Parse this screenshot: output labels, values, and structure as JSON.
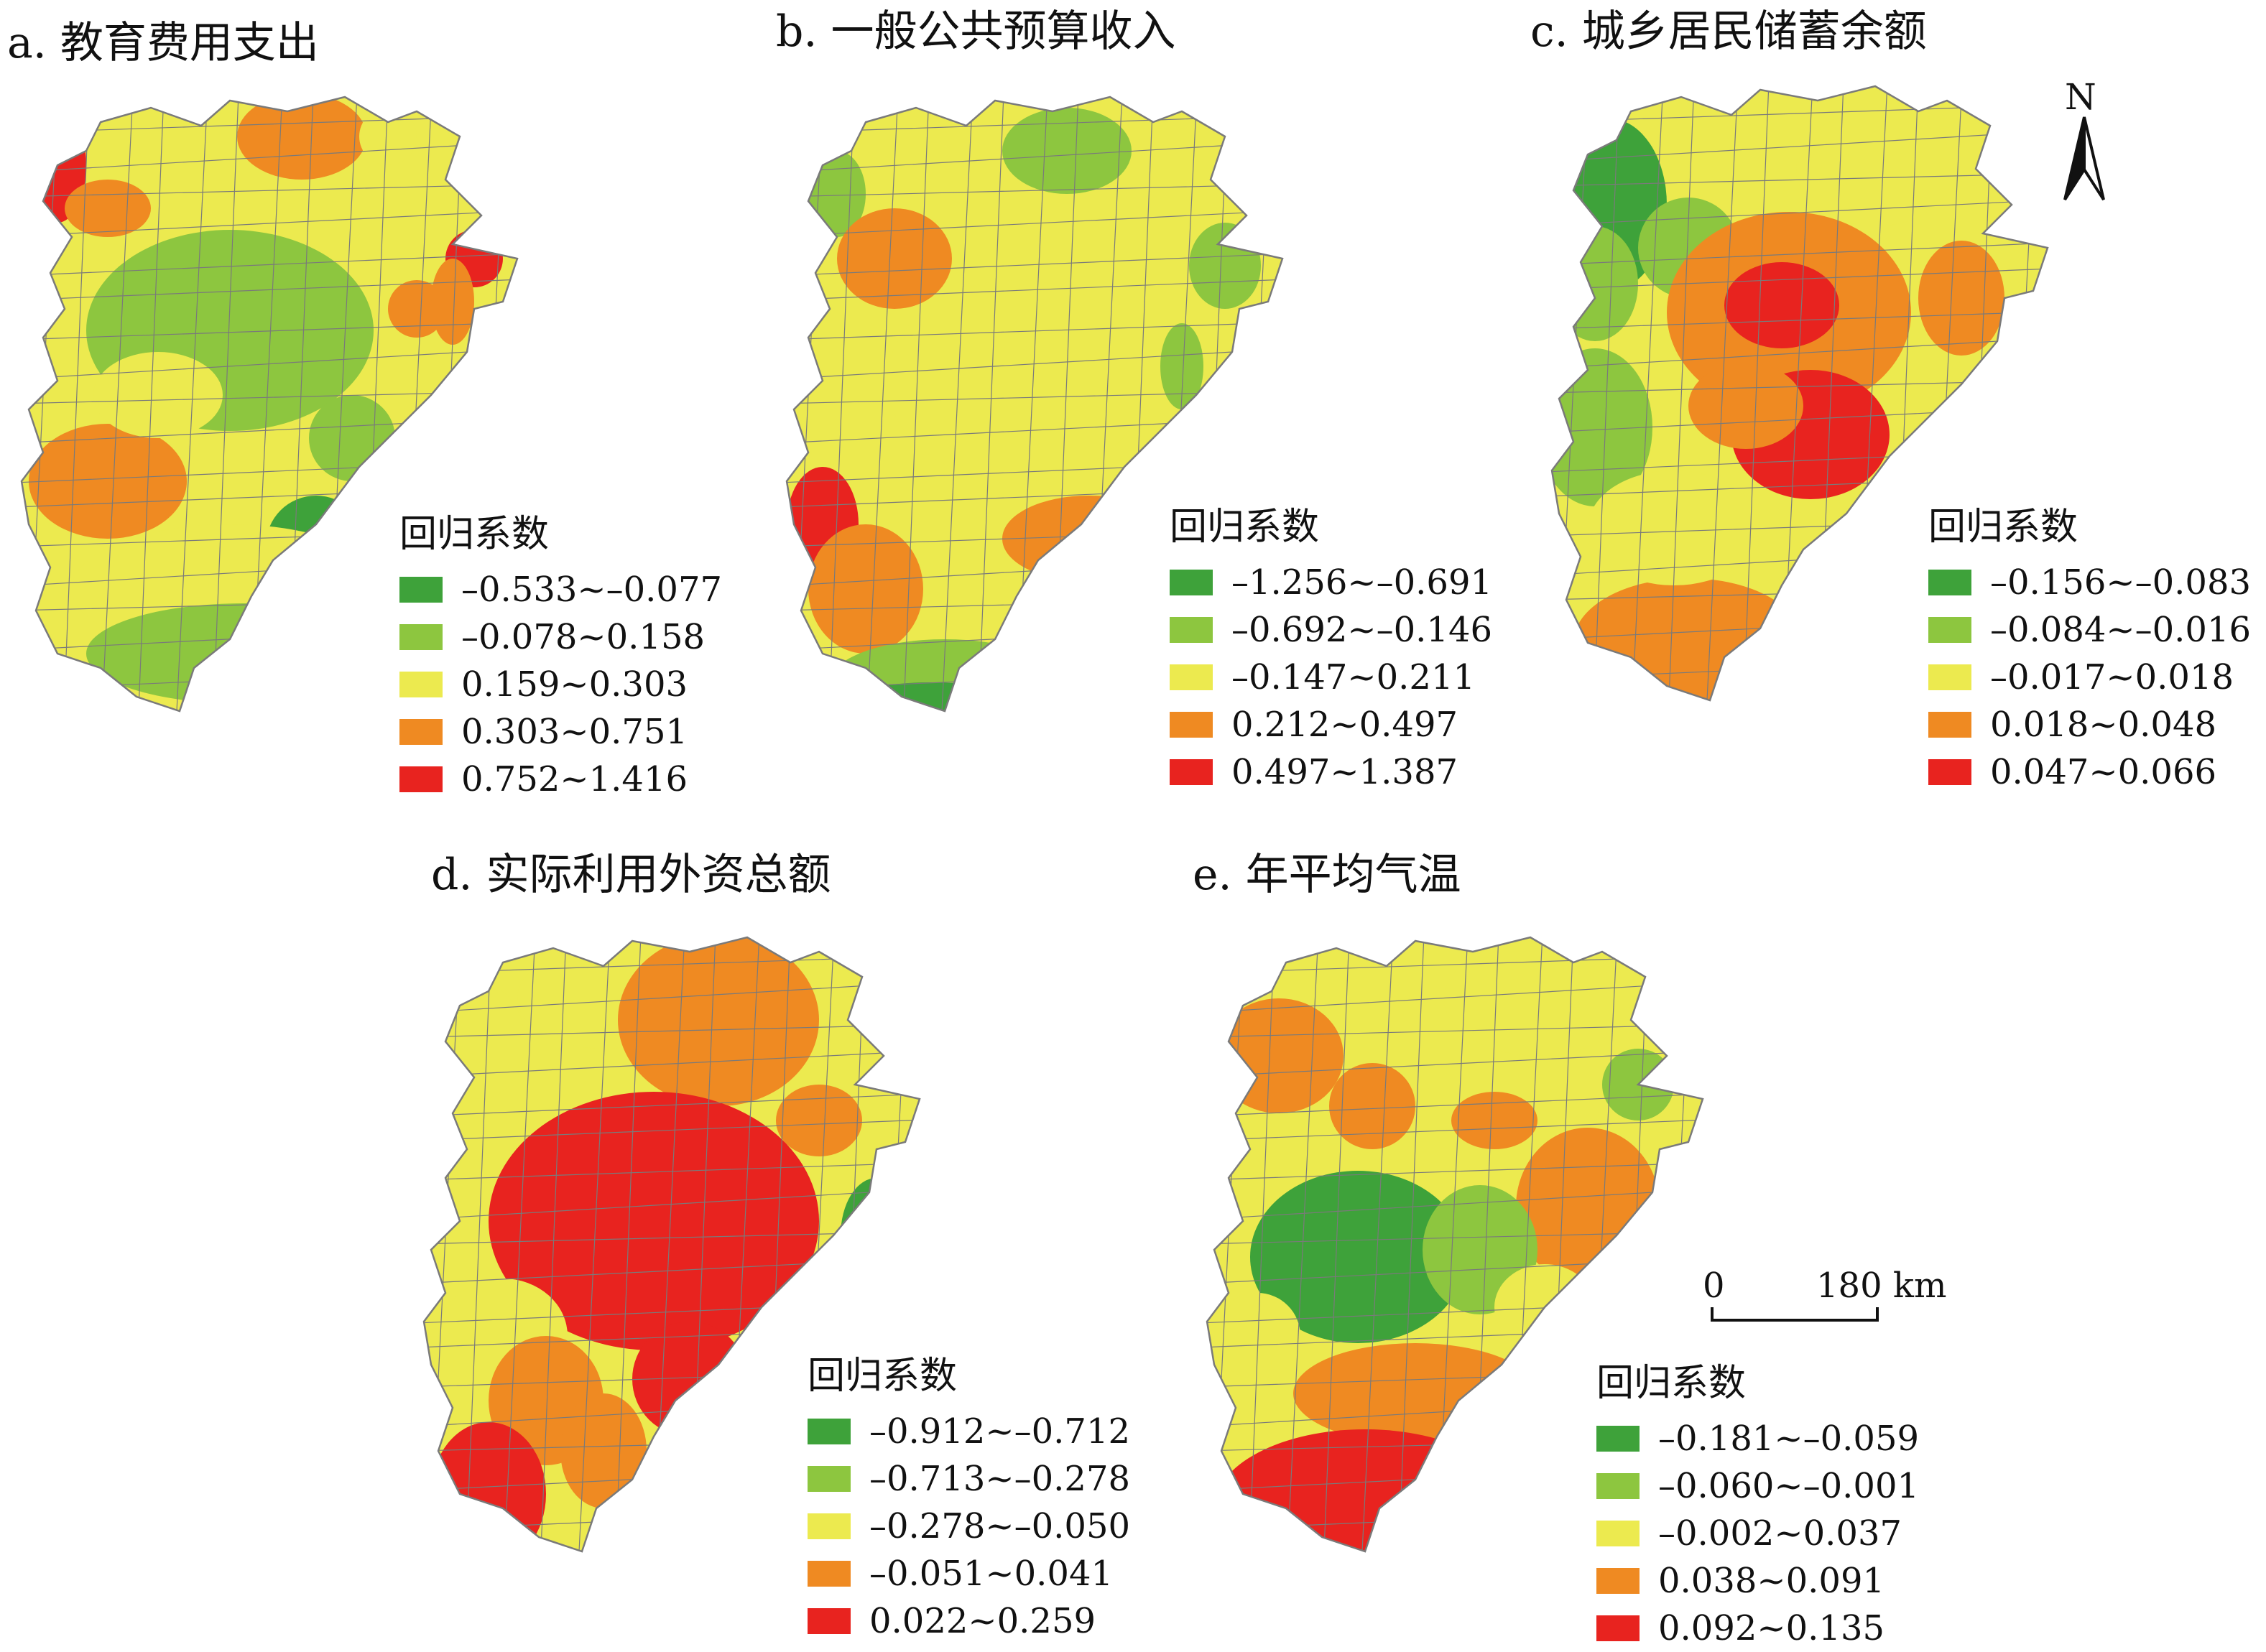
{
  "colors": {
    "dark_green": "#3ea23a",
    "light_green": "#8dc63f",
    "yellow": "#ecea4f",
    "orange": "#ef8a22",
    "red": "#e8231f",
    "boundary": "#7a7a7a"
  },
  "panels": [
    {
      "title": "a. 教育费用支出",
      "legend_title": "回归系数",
      "classes": [
        {
          "label": "–0.533~–0.077",
          "color": "#3ea23a"
        },
        {
          "label": "–0.078~0.158",
          "color": "#8dc63f"
        },
        {
          "label": "0.159~0.303",
          "color": "#ecea4f"
        },
        {
          "label": "0.303~0.751",
          "color": "#ef8a22"
        },
        {
          "label": "0.752~1.416",
          "color": "#e8231f"
        }
      ]
    },
    {
      "title": "b. 一般公共预算收入",
      "legend_title": "回归系数",
      "classes": [
        {
          "label": "–1.256~–0.691",
          "color": "#3ea23a"
        },
        {
          "label": "–0.692~–0.146",
          "color": "#8dc63f"
        },
        {
          "label": "–0.147~0.211",
          "color": "#ecea4f"
        },
        {
          "label": "0.212~0.497",
          "color": "#ef8a22"
        },
        {
          "label": "0.497~1.387",
          "color": "#e8231f"
        }
      ]
    },
    {
      "title": "c. 城乡居民储蓄余额",
      "legend_title": "回归系数",
      "classes": [
        {
          "label": "–0.156~–0.083",
          "color": "#3ea23a"
        },
        {
          "label": "–0.084~–0.016",
          "color": "#8dc63f"
        },
        {
          "label": "–0.017~0.018",
          "color": "#ecea4f"
        },
        {
          "label": "0.018~0.048",
          "color": "#ef8a22"
        },
        {
          "label": "0.047~0.066",
          "color": "#e8231f"
        }
      ]
    },
    {
      "title": "d. 实际利用外资总额",
      "legend_title": "回归系数",
      "classes": [
        {
          "label": "–0.912~–0.712",
          "color": "#3ea23a"
        },
        {
          "label": "–0.713~–0.278",
          "color": "#8dc63f"
        },
        {
          "label": "–0.278~–0.050",
          "color": "#ecea4f"
        },
        {
          "label": "–0.051~0.041",
          "color": "#ef8a22"
        },
        {
          "label": "0.022~0.259",
          "color": "#e8231f"
        }
      ]
    },
    {
      "title": "e. 年平均气温",
      "legend_title": "回归系数",
      "classes": [
        {
          "label": "–0.181~–0.059",
          "color": "#3ea23a"
        },
        {
          "label": "–0.060~–0.001",
          "color": "#8dc63f"
        },
        {
          "label": "–0.002~0.037",
          "color": "#ecea4f"
        },
        {
          "label": "0.038~0.091",
          "color": "#ef8a22"
        },
        {
          "label": "0.092~0.135",
          "color": "#e8231f"
        }
      ]
    }
  ],
  "north_arrow": {
    "label": "N"
  },
  "scale_bar": {
    "start": "0",
    "end": "180 km"
  }
}
